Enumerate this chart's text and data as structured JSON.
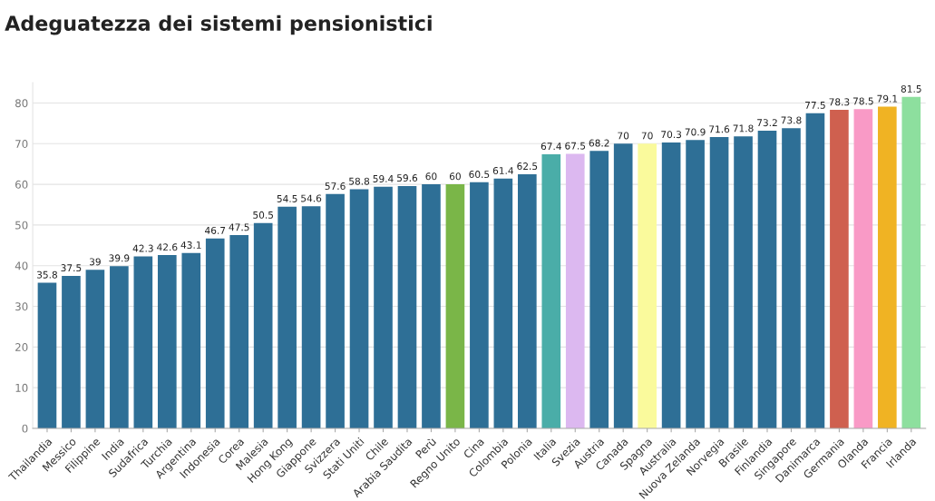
{
  "chart_data": {
    "type": "bar",
    "title": "Adeguatezza dei sistemi pensionistici",
    "categories": [
      "Thailandia",
      "Messico",
      "Filippine",
      "India",
      "Sudafrica",
      "Turchia",
      "Argentina",
      "Indonesia",
      "Corea",
      "Malesia",
      "Hong Kong",
      "Giappone",
      "Svizzera",
      "Stati Uniti",
      "Chile",
      "Arabia Saudita",
      "Perù",
      "Regno Unito",
      "Cina",
      "Colombia",
      "Polonia",
      "Italia",
      "Svezia",
      "Austria",
      "Canada",
      "Spagna",
      "Australia",
      "Nuova Zelanda",
      "Norvegia",
      "Brasile",
      "Finlandia",
      "Singapore",
      "Danimarca",
      "Germania",
      "Olanda",
      "Francia",
      "Irlanda"
    ],
    "values": [
      35.8,
      37.5,
      39,
      39.9,
      42.3,
      42.6,
      43.1,
      46.7,
      47.5,
      50.5,
      54.5,
      54.6,
      57.6,
      58.8,
      59.4,
      59.6,
      60,
      60,
      60.5,
      61.4,
      62.5,
      67.4,
      67.5,
      68.2,
      70,
      70,
      70.3,
      70.9,
      71.6,
      71.8,
      73.2,
      73.8,
      77.5,
      78.3,
      78.5,
      79.1,
      81.5
    ],
    "colors": [
      "#2e6f96",
      "#2e6f96",
      "#2e6f96",
      "#2e6f96",
      "#2e6f96",
      "#2e6f96",
      "#2e6f96",
      "#2e6f96",
      "#2e6f96",
      "#2e6f96",
      "#2e6f96",
      "#2e6f96",
      "#2e6f96",
      "#2e6f96",
      "#2e6f96",
      "#2e6f96",
      "#2e6f96",
      "#7ab648",
      "#2e6f96",
      "#2e6f96",
      "#2e6f96",
      "#4aada8",
      "#dcb8f0",
      "#2e6f96",
      "#2e6f96",
      "#fafa9c",
      "#2e6f96",
      "#2e6f96",
      "#2e6f96",
      "#2e6f96",
      "#2e6f96",
      "#2e6f96",
      "#2e6f96",
      "#cf604f",
      "#f99ac6",
      "#f0b323",
      "#8ddf9e"
    ],
    "ylim": [
      0,
      85
    ],
    "yticks": [
      0,
      10,
      20,
      30,
      40,
      50,
      60,
      70,
      80
    ],
    "grid": "y",
    "data_labels": true
  }
}
